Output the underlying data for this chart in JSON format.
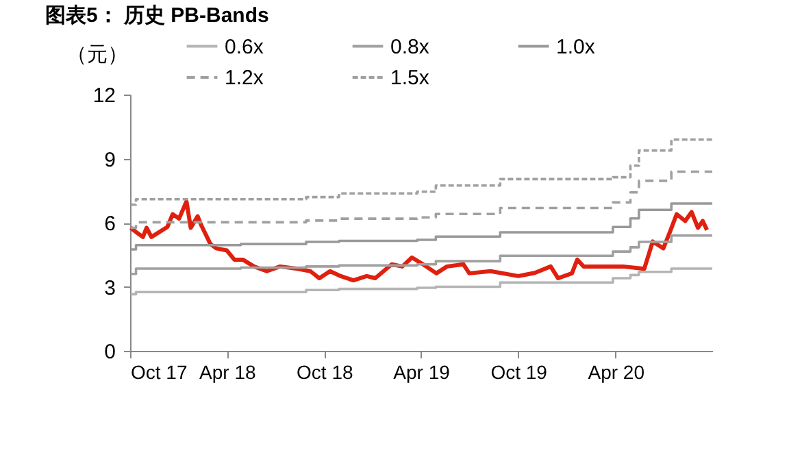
{
  "chart_data": {
    "type": "step",
    "title": "图表5：  历史 PB-Bands",
    "ylabel": "（元）",
    "xlim": [
      "2017-10-01",
      "2020-09-30"
    ],
    "xticks": [
      {
        "value": "2017-10-01",
        "label": "Oct 17"
      },
      {
        "value": "2018-04-01",
        "label": "Apr 18"
      },
      {
        "value": "2018-10-01",
        "label": "Oct 18"
      },
      {
        "value": "2019-04-01",
        "label": "Apr 19"
      },
      {
        "value": "2019-10-01",
        "label": "Oct 19"
      },
      {
        "value": "2020-04-01",
        "label": "Apr 20"
      }
    ],
    "ylim": [
      0,
      12
    ],
    "yticks": [
      0,
      3,
      6,
      9,
      12
    ],
    "grid": false,
    "legend": "top",
    "marker": "none",
    "x": [
      "2017-10-02",
      "2017-10-12",
      "2018-04-27",
      "2018-08-28",
      "2018-10-29",
      "2019-03-25",
      "2019-04-29",
      "2019-08-28",
      "2020-03-27",
      "2020-04-29",
      "2020-05-15",
      "2020-07-15",
      "2020-09-30"
    ],
    "series": [
      {
        "type": "line",
        "color": "#e0200f",
        "line_style": "solid",
        "x": [
          "2017-10-02",
          "2017-10-13",
          "2017-10-25",
          "2017-11-01",
          "2017-11-10",
          "2017-12-10",
          "2017-12-20",
          "2018-01-01",
          "2018-01-15",
          "2018-01-23",
          "2018-02-05",
          "2018-02-12",
          "2018-03-01",
          "2018-03-12",
          "2018-04-01",
          "2018-04-15",
          "2018-05-01",
          "2018-05-22",
          "2018-06-15",
          "2018-07-10",
          "2018-08-12",
          "2018-09-05",
          "2018-09-22",
          "2018-10-12",
          "2018-11-01",
          "2018-11-25",
          "2018-12-20",
          "2019-01-05",
          "2019-02-05",
          "2019-02-25",
          "2019-03-15",
          "2019-04-05",
          "2019-04-30",
          "2019-05-20",
          "2019-06-20",
          "2019-07-01",
          "2019-08-10",
          "2019-10-01",
          "2019-11-01",
          "2019-12-01",
          "2019-12-15",
          "2020-01-10",
          "2020-01-20",
          "2020-02-01",
          "2020-04-15",
          "2020-05-25",
          "2020-06-10",
          "2020-06-30",
          "2020-07-12",
          "2020-07-25",
          "2020-08-10",
          "2020-08-22",
          "2020-09-03",
          "2020-09-12",
          "2020-09-20"
        ],
        "values": [
          5.76,
          5.55,
          5.33,
          5.76,
          5.33,
          5.8,
          6.4,
          6.19,
          7.0,
          5.76,
          6.3,
          5.87,
          5.0,
          4.8,
          4.7,
          4.27,
          4.27,
          3.95,
          3.73,
          3.95,
          3.84,
          3.73,
          3.4,
          3.73,
          3.5,
          3.3,
          3.5,
          3.4,
          4.05,
          3.95,
          4.37,
          4.05,
          3.63,
          3.95,
          4.05,
          3.63,
          3.73,
          3.5,
          3.65,
          3.95,
          3.4,
          3.63,
          4.27,
          3.95,
          3.95,
          3.84,
          5.12,
          4.8,
          5.55,
          6.4,
          6.08,
          6.5,
          5.76,
          6.08,
          5.66
        ]
      },
      {
        "name": "0.6x",
        "color": "#b4b4b4",
        "line_style": "solid",
        "values": [
          2.65,
          2.75,
          2.75,
          2.85,
          2.9,
          2.95,
          3.0,
          3.2,
          3.4,
          3.55,
          3.7,
          3.85,
          3.85
        ]
      },
      {
        "name": "0.8x",
        "color": "#a0a0a0",
        "line_style": "solid",
        "values": [
          3.6,
          3.85,
          3.9,
          3.95,
          4.0,
          4.05,
          4.2,
          4.45,
          4.65,
          4.85,
          5.1,
          5.4,
          5.4
        ]
      },
      {
        "name": "1.0x",
        "color": "#999999",
        "line_style": "solid",
        "values": [
          4.75,
          4.95,
          5.0,
          5.1,
          5.15,
          5.2,
          5.35,
          5.55,
          5.8,
          6.2,
          6.6,
          6.9,
          6.9
        ]
      },
      {
        "name": "1.2x",
        "color": "#a0a0a0",
        "line_style": "dashed",
        "values": [
          5.76,
          6.02,
          6.02,
          6.1,
          6.19,
          6.25,
          6.41,
          6.69,
          6.95,
          7.42,
          7.96,
          8.39,
          8.39
        ]
      },
      {
        "name": "1.5x",
        "color": "#a0a0a0",
        "line_style": "dotted",
        "values": [
          6.84,
          7.1,
          7.1,
          7.2,
          7.37,
          7.45,
          7.74,
          8.04,
          8.13,
          8.67,
          9.38,
          9.89,
          9.89
        ]
      }
    ]
  }
}
